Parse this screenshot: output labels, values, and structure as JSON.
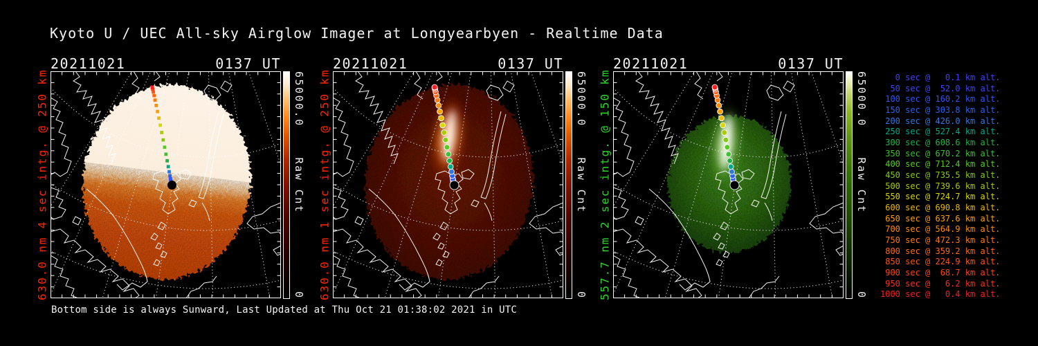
{
  "title": "Kyoto U / UEC All-sky Airglow Imager at Longyearbyen - Realtime Data",
  "status_line": "Bottom side is always Sunward, Last Updated at Thu Oct 21 01:38:02 2021 in UTC",
  "chart_data": {
    "type": "heatmap",
    "title": "Kyoto U / UEC All-sky Airglow Imager at Longyearbyen - Realtime Data",
    "panels": [
      {
        "date": "20211021",
        "time_ut": "0137 UT",
        "channel": "630.0 nm 4 sec intg. @ 250 km",
        "channel_color": "#ff2600",
        "colorbar": {
          "max_label": "65000.0",
          "min_label": "0",
          "title": "Raw Cnt",
          "scale": "black-red-orange-white"
        },
        "appearance": "saturated all-sky disc, upper half overexposed cream, lower half orange noise"
      },
      {
        "date": "20211021",
        "time_ut": "0137 UT",
        "channel": "630.0 nm 1 sec intg. @ 250 km",
        "channel_color": "#ff2600",
        "colorbar": {
          "max_label": "65000.0",
          "min_label": "0",
          "title": "Raw Cnt",
          "scale": "black-red-orange-white"
        },
        "appearance": "dark red all-sky disc with bright auroral streak along rocket track"
      },
      {
        "date": "20211021",
        "time_ut": "0137 UT",
        "channel": "557.7 nm 2 sec intg. @ 150 km",
        "channel_color": "#2ed42e",
        "colorbar": {
          "max_label": "65000.0",
          "min_label": "0",
          "title": "Raw Cnt",
          "scale": "black-green-white"
        },
        "appearance": "dark green all-sky disc with bright auroral streak along rocket track"
      }
    ],
    "rocket_track": [
      {
        "sec": 0,
        "alt_km": "0.1",
        "color": "#4040ff"
      },
      {
        "sec": 50,
        "alt_km": "52.0",
        "color": "#3a46ff"
      },
      {
        "sec": 100,
        "alt_km": "160.2",
        "color": "#2f55ff"
      },
      {
        "sec": 150,
        "alt_km": "303.8",
        "color": "#2a62f2"
      },
      {
        "sec": 200,
        "alt_km": "426.0",
        "color": "#3377e0"
      },
      {
        "sec": 250,
        "alt_km": "527.4",
        "color": "#00aa88"
      },
      {
        "sec": 300,
        "alt_km": "608.6",
        "color": "#22b244"
      },
      {
        "sec": 350,
        "alt_km": "670.2",
        "color": "#3cc232"
      },
      {
        "sec": 400,
        "alt_km": "712.4",
        "color": "#55cc22"
      },
      {
        "sec": 450,
        "alt_km": "735.5",
        "color": "#84cc11"
      },
      {
        "sec": 500,
        "alt_km": "739.6",
        "color": "#aacc00"
      },
      {
        "sec": 550,
        "alt_km": "724.7",
        "color": "#d8d800"
      },
      {
        "sec": 600,
        "alt_km": "690.8",
        "color": "#eebb00"
      },
      {
        "sec": 650,
        "alt_km": "637.6",
        "color": "#ffa000"
      },
      {
        "sec": 700,
        "alt_km": "564.9",
        "color": "#ff8d05"
      },
      {
        "sec": 750,
        "alt_km": "472.3",
        "color": "#ff7a0a"
      },
      {
        "sec": 800,
        "alt_km": "359.2",
        "color": "#ff680e"
      },
      {
        "sec": 850,
        "alt_km": "224.9",
        "color": "#ff5512"
      },
      {
        "sec": 900,
        "alt_km": "68.7",
        "color": "#ff4316"
      },
      {
        "sec": 950,
        "alt_km": "6.2",
        "color": "#ff301a"
      },
      {
        "sec": 1000,
        "alt_km": "0.4",
        "color": "#ff1e1e"
      }
    ],
    "legend_format": "{sec} sec @ {alt} km alt."
  }
}
